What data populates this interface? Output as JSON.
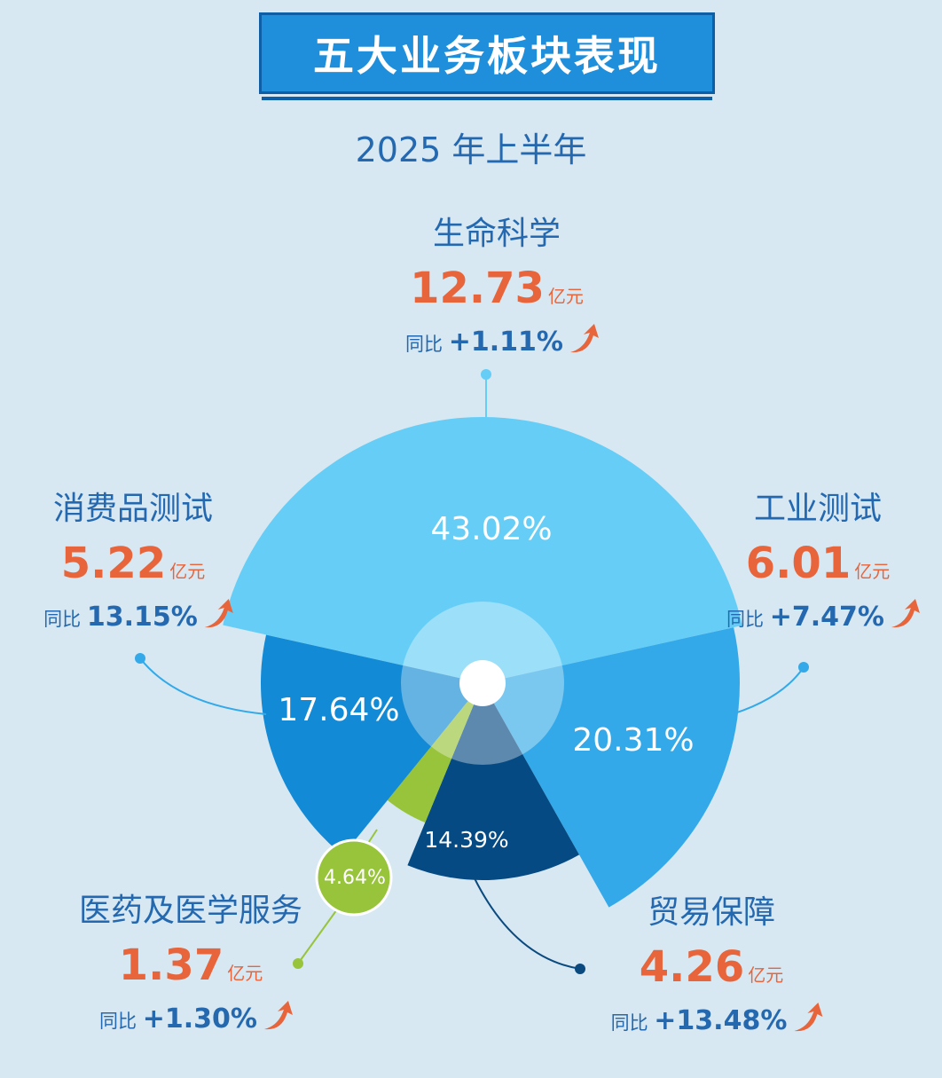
{
  "title": "五大业务板块表现",
  "subtitle": "2025 年上半年",
  "colors": {
    "background": "#d7e8f3",
    "accent_orange": "#e8643a",
    "text_blue": "#2469b0"
  },
  "chart_data": {
    "type": "pie",
    "unit": "亿元",
    "yoy_label": "同比",
    "segments": [
      {
        "name": "生命科学",
        "value": 12.73,
        "share": 43.02,
        "share_label": "43.02%",
        "yoy": "+1.11%",
        "color": "#66cef6"
      },
      {
        "name": "工业测试",
        "value": 6.01,
        "share": 20.31,
        "share_label": "20.31%",
        "yoy": "+7.47%",
        "color": "#33a9e9"
      },
      {
        "name": "贸易保障",
        "value": 4.26,
        "share": 14.39,
        "share_label": "14.39%",
        "yoy": "+13.48%",
        "color": "#054a82"
      },
      {
        "name": "医药及医学服务",
        "value": 1.37,
        "share": 4.64,
        "share_label": "4.64%",
        "yoy": "+1.30%",
        "color": "#98c43b"
      },
      {
        "name": "消费品测试",
        "value": 5.22,
        "share": 17.64,
        "share_label": "17.64%",
        "yoy": "13.15%",
        "color": "#138ad5"
      }
    ]
  }
}
